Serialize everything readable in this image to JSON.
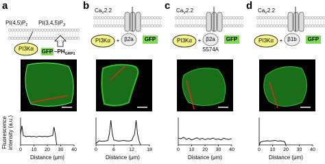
{
  "panels": [
    {
      "label": "a",
      "diagram": {
        "lipid1": {
          "main": "PI(4,5)P",
          "sub": "2"
        },
        "lipid2": {
          "main": "PI(3,4,5)P",
          "sub": "3"
        },
        "enzyme": "PI3Kα",
        "probe": {
          "tag": "GFP",
          "main": "–PH",
          "sub": "GRP1"
        }
      },
      "plot": {
        "xlim": [
          0,
          40
        ],
        "xticks": [
          0,
          10,
          20,
          30,
          40
        ],
        "ylim": [
          0,
          100
        ],
        "x_label": "Distance (μm)",
        "x": [
          0,
          1,
          2,
          4,
          6,
          8,
          10,
          12,
          14,
          16,
          18,
          20,
          22,
          24,
          25,
          26,
          27
        ],
        "y": [
          40,
          70,
          35,
          30,
          32,
          30,
          31,
          29,
          32,
          30,
          31,
          30,
          32,
          34,
          65,
          38,
          0
        ]
      }
    },
    {
      "label": "b",
      "diagram": {
        "channel": {
          "main": "Ca",
          "sub": "V",
          "rest": "2.2"
        },
        "enzyme": "PI3Kα",
        "plus": "+",
        "beta": "β2a",
        "tag": "GFP"
      },
      "plot": {
        "xlim": [
          0,
          18
        ],
        "xticks": [
          0,
          6,
          12,
          18
        ],
        "ylim": [
          0,
          100
        ],
        "x_label": "Distance (μm)",
        "x": [
          0,
          1,
          2,
          3,
          4,
          4.5,
          5,
          5.5,
          6,
          7,
          8,
          9,
          10,
          11,
          12,
          13,
          13.5,
          14,
          14.5,
          15
        ],
        "y": [
          5,
          15,
          13,
          14,
          16,
          40,
          90,
          40,
          18,
          15,
          14,
          16,
          15,
          14,
          16,
          40,
          90,
          38,
          15,
          0
        ]
      }
    },
    {
      "label": "c",
      "diagram": {
        "channel": {
          "main": "Ca",
          "sub": "V",
          "rest": "2.2"
        },
        "enzyme": "PI3Kα",
        "plus": "+",
        "beta": "β2a",
        "tag": "GFP",
        "mutation": "S574A"
      },
      "plot": {
        "xlim": [
          0,
          40
        ],
        "xticks": [
          0,
          10,
          20,
          30,
          40
        ],
        "ylim": [
          0,
          100
        ],
        "x_label": "Distance (μm)",
        "x": [
          0,
          2,
          4,
          6,
          8,
          10,
          12,
          14,
          16,
          18,
          20,
          22,
          24,
          26,
          28,
          30,
          32,
          34,
          36,
          38,
          40
        ],
        "y": [
          25,
          22,
          28,
          20,
          24,
          18,
          22,
          26,
          20,
          24,
          19,
          23,
          21,
          25,
          20,
          22,
          18,
          24,
          21,
          20,
          23
        ]
      }
    },
    {
      "label": "d",
      "diagram": {
        "channel": {
          "main": "Ca",
          "sub": "V",
          "rest": "2.2"
        },
        "enzyme": "PI3Kα",
        "plus": "+",
        "beta": "β1b",
        "tag": "GFP"
      },
      "plot": {
        "xlim": [
          0,
          40
        ],
        "xticks": [
          0,
          10,
          20,
          30,
          40
        ],
        "ylim": [
          0,
          100
        ],
        "x_label": "Distance (μm)",
        "x": [
          0,
          1,
          2,
          4,
          6,
          8,
          10,
          12,
          14,
          16,
          18,
          19,
          20
        ],
        "y": [
          0,
          10,
          12,
          14,
          15,
          14,
          15,
          16,
          14,
          15,
          13,
          12,
          0
        ]
      }
    }
  ],
  "y_label": [
    "Fluorescence",
    "intensity (a.u.)"
  ]
}
